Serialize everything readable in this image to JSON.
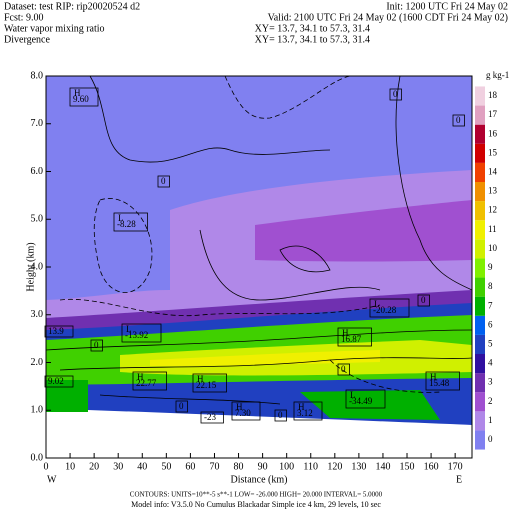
{
  "chart_data": {
    "type": "contour",
    "header": {
      "dataset": "Dataset: test   RIP: rip20020524 d2",
      "init": "Init: 1200 UTC Fri 24 May 02",
      "fcst": "Fcst:      9.00",
      "valid": "Valid: 2100 UTC Fri 24 May 02 (1600 CDT Fri 24 May 02)",
      "field1": "Water vapor mixing ratio",
      "xy1": "XY=   13.7, 34.1 to   57.3, 31.4",
      "field2": "Divergence",
      "xy2": "XY=  13.7, 34.1 to   57.3, 31.4"
    },
    "ylabel": "Height (km)",
    "xlabel": "Distance (km)",
    "left_end": "W",
    "right_end": "E",
    "xlim": [
      0,
      177
    ],
    "ylim": [
      0,
      8
    ],
    "xticks": [
      0,
      10,
      20,
      30,
      40,
      50,
      60,
      70,
      80,
      90,
      100,
      110,
      120,
      130,
      140,
      150,
      160,
      170
    ],
    "yticks": [
      {
        "value": 0,
        "label": "0.0"
      },
      {
        "value": 1,
        "label": "1.0"
      },
      {
        "value": 2,
        "label": "2.0"
      },
      {
        "value": 3,
        "label": "3.0"
      },
      {
        "value": 4,
        "label": "4.0"
      },
      {
        "value": 5,
        "label": "5.0"
      },
      {
        "value": 6,
        "label": "6.0"
      },
      {
        "value": 7,
        "label": "7.0"
      },
      {
        "value": 8,
        "label": "8.0"
      }
    ],
    "colorbar": {
      "label": "g kg-1",
      "ticks": [
        0,
        1,
        2,
        3,
        4,
        5,
        6,
        7,
        8,
        9,
        10,
        11,
        12,
        13,
        14,
        15,
        16,
        17,
        18
      ],
      "colors": [
        "#8080f0",
        "#b088e8",
        "#a050d0",
        "#7030b0",
        "#3010a0",
        "#2040c0",
        "#0060f0",
        "#00b000",
        "#40d000",
        "#80f000",
        "#d0f000",
        "#f0f000",
        "#f0c000",
        "#f09000",
        "#f04000",
        "#d00000",
        "#b00030",
        "#e0a0c0",
        "#f0d0e0"
      ]
    },
    "annotations": [
      {
        "kind": "H",
        "text": "9.60"
      },
      {
        "kind": "L",
        "text": "-8.28"
      },
      {
        "kind": "L",
        "text": "-13.92"
      },
      {
        "kind": "",
        "text": "13.9"
      },
      {
        "kind": "H",
        "text": "16.87"
      },
      {
        "kind": "L",
        "text": "-20.28"
      },
      {
        "kind": "H",
        "text": "22.77"
      },
      {
        "kind": "H",
        "text": "22.15"
      },
      {
        "kind": "",
        "text": "9.02"
      },
      {
        "kind": "H",
        "text": "15.48"
      },
      {
        "kind": "L",
        "text": "-34.49"
      },
      {
        "kind": "H",
        "text": "7.30"
      },
      {
        "kind": "H",
        "text": "3.12"
      },
      {
        "kind": "",
        "text": "-23"
      },
      {
        "kind": "",
        "text": "0"
      },
      {
        "kind": "",
        "text": "0"
      },
      {
        "kind": "",
        "text": "0"
      },
      {
        "kind": "",
        "text": "0"
      },
      {
        "kind": "",
        "text": "0"
      },
      {
        "kind": "",
        "text": "0"
      },
      {
        "kind": "",
        "text": "0"
      },
      {
        "kind": "",
        "text": "0"
      }
    ],
    "footer": [
      "CONTOURS:  UNITS=10**-5 s**-1   LOW= -26.000   HIGH= 20.000   INTERVAL=  5.0000",
      "Model info: V3.5.0 No Cumulus Blackadar Simple ice   4 km, 29 levels, 10 sec"
    ]
  }
}
